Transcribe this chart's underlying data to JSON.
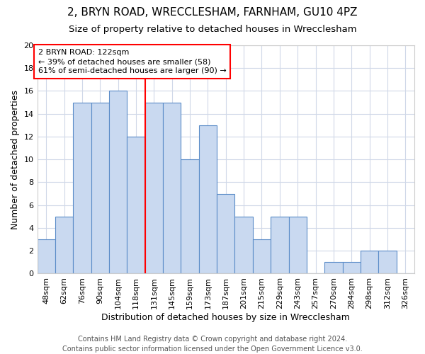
{
  "title1": "2, BRYN ROAD, WRECCLESHAM, FARNHAM, GU10 4PZ",
  "title2": "Size of property relative to detached houses in Wrecclesham",
  "xlabel": "Distribution of detached houses by size in Wrecclesham",
  "ylabel": "Number of detached properties",
  "footnote": "Contains HM Land Registry data © Crown copyright and database right 2024.\nContains public sector information licensed under the Open Government Licence v3.0.",
  "categories": [
    "48sqm",
    "62sqm",
    "76sqm",
    "90sqm",
    "104sqm",
    "118sqm",
    "131sqm",
    "145sqm",
    "159sqm",
    "173sqm",
    "187sqm",
    "201sqm",
    "215sqm",
    "229sqm",
    "243sqm",
    "257sqm",
    "270sqm",
    "284sqm",
    "298sqm",
    "312sqm",
    "326sqm"
  ],
  "values": [
    3,
    5,
    15,
    15,
    16,
    12,
    15,
    15,
    10,
    13,
    7,
    5,
    3,
    5,
    5,
    0,
    1,
    1,
    2,
    2,
    0
  ],
  "bar_color": "#c9d9f0",
  "bar_edge_color": "#5b8cc8",
  "grid_color": "#d0d8e8",
  "red_line_x": 5.5,
  "annotation_line1": "2 BRYN ROAD: 122sqm",
  "annotation_line2": "← 39% of detached houses are smaller (58)",
  "annotation_line3": "61% of semi-detached houses are larger (90) →",
  "annotation_box_color": "white",
  "annotation_box_edge": "red",
  "ylim": [
    0,
    20
  ],
  "yticks": [
    0,
    2,
    4,
    6,
    8,
    10,
    12,
    14,
    16,
    18,
    20
  ],
  "title1_fontsize": 11,
  "title2_fontsize": 9.5,
  "xlabel_fontsize": 9,
  "ylabel_fontsize": 9,
  "tick_fontsize": 8,
  "annotation_fontsize": 8,
  "footnote_fontsize": 7
}
